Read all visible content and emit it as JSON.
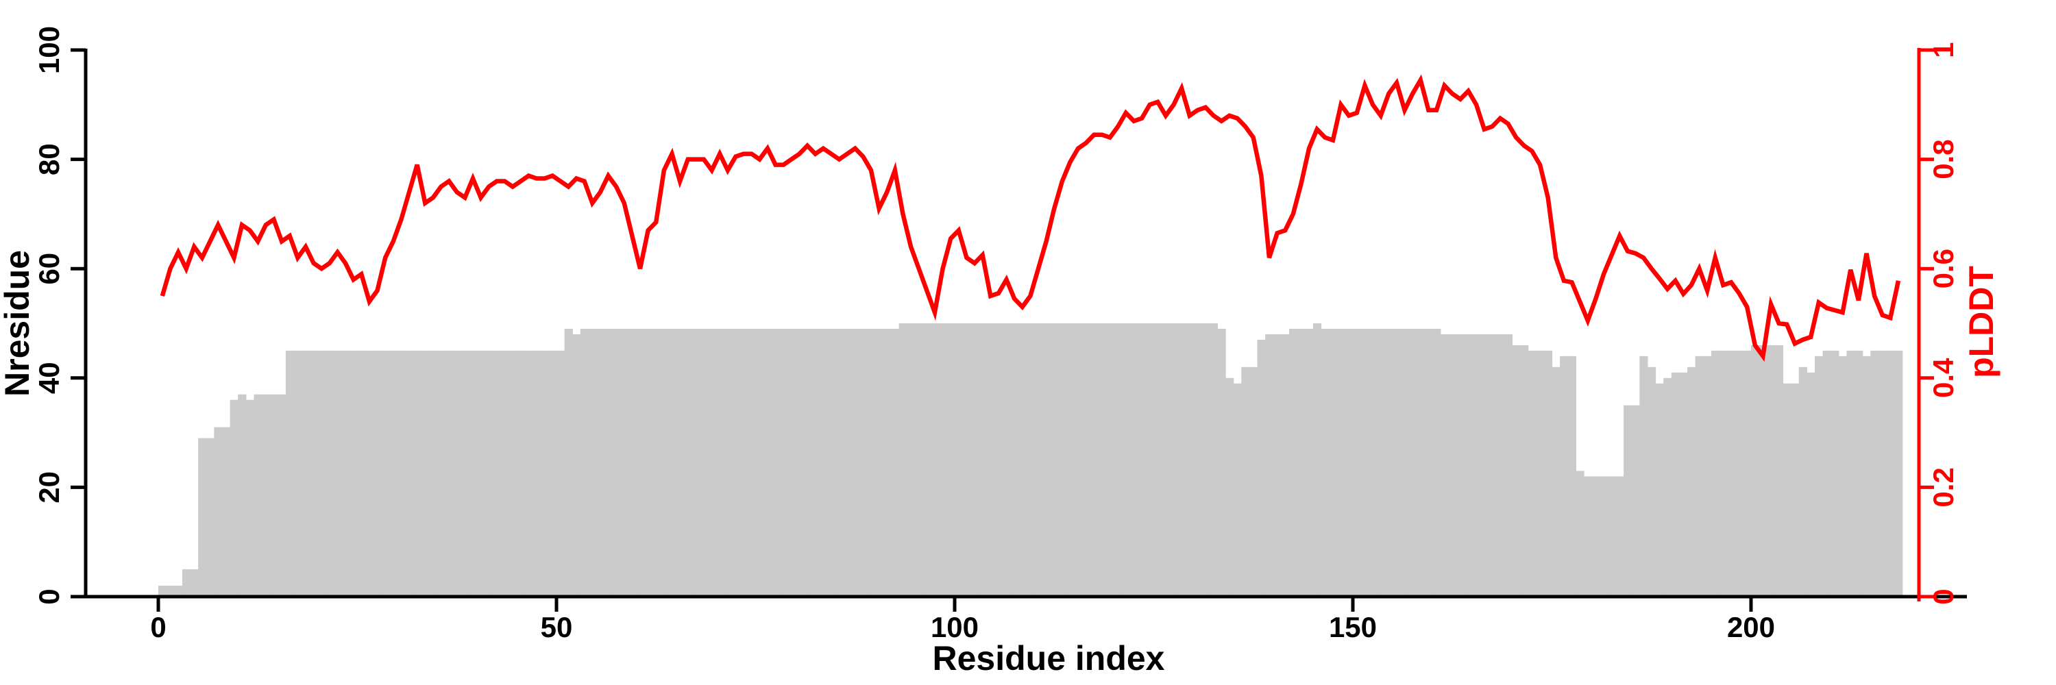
{
  "chart_data": {
    "type": "bar+line",
    "title": "",
    "xlabel": "Residue index",
    "ylabel_left": "Nresidue",
    "ylabel_right": "pLDDT",
    "xlim": [
      0,
      221
    ],
    "ylim_left": [
      0,
      100
    ],
    "ylim_right": [
      0,
      1
    ],
    "grid": false,
    "legend": "none",
    "x_ticks": [
      0,
      50,
      100,
      150,
      200
    ],
    "x_tick_labels": [
      "0",
      "50",
      "100",
      "150",
      "200"
    ],
    "y_ticks_left": [
      0,
      20,
      40,
      60,
      80,
      100
    ],
    "y_tick_labels_left": [
      "0",
      "20",
      "40",
      "60",
      "80",
      "100"
    ],
    "y_ticks_right": [
      0,
      0.2,
      0.4,
      0.6,
      0.8,
      1
    ],
    "y_tick_labels_right": [
      "0",
      "0.2",
      "0.4",
      "0.6",
      "0.8",
      "1"
    ],
    "bar_color": "#cbcbcb",
    "line_color": "#ff0000",
    "axis_color": "#000000",
    "x_start": 0,
    "series": [
      {
        "name": "Nresidue",
        "type": "bar",
        "axis": "left",
        "values": [
          2,
          2,
          2,
          5,
          5,
          29,
          29,
          31,
          31,
          36,
          37,
          36,
          37,
          37,
          37,
          37,
          45,
          45,
          45,
          45,
          45,
          45,
          45,
          45,
          45,
          45,
          45,
          45,
          45,
          45,
          45,
          45,
          45,
          45,
          45,
          45,
          45,
          45,
          45,
          45,
          45,
          45,
          45,
          45,
          45,
          45,
          45,
          45,
          45,
          45,
          45,
          49,
          48,
          49,
          49,
          49,
          49,
          49,
          49,
          49,
          49,
          49,
          49,
          49,
          49,
          49,
          49,
          49,
          49,
          49,
          49,
          49,
          49,
          49,
          49,
          49,
          49,
          49,
          49,
          49,
          49,
          49,
          49,
          49,
          49,
          49,
          49,
          49,
          49,
          49,
          49,
          49,
          49,
          50,
          50,
          50,
          50,
          50,
          50,
          50,
          50,
          50,
          50,
          50,
          50,
          50,
          50,
          50,
          50,
          50,
          50,
          50,
          50,
          50,
          50,
          50,
          50,
          50,
          50,
          50,
          50,
          50,
          50,
          50,
          50,
          50,
          50,
          50,
          50,
          50,
          50,
          50,
          50,
          49,
          40,
          39,
          42,
          42,
          47,
          48,
          48,
          48,
          49,
          49,
          49,
          50,
          49,
          49,
          49,
          49,
          49,
          49,
          49,
          49,
          49,
          49,
          49,
          49,
          49,
          49,
          49,
          48,
          48,
          48,
          48,
          48,
          48,
          48,
          48,
          48,
          46,
          46,
          45,
          45,
          45,
          42,
          44,
          44,
          23,
          22,
          22,
          22,
          22,
          22,
          35,
          35,
          44,
          42,
          39,
          40,
          41,
          41,
          42,
          44,
          44,
          45,
          45,
          45,
          45,
          45,
          46,
          46,
          46,
          46,
          39,
          39,
          42,
          41,
          44,
          45,
          45,
          44,
          45,
          45,
          44,
          45,
          45,
          45,
          45
        ]
      },
      {
        "name": "pLDDT",
        "type": "line",
        "axis": "right",
        "values": [
          0.55,
          0.6,
          0.63,
          0.6,
          0.64,
          0.62,
          0.65,
          0.68,
          0.65,
          0.62,
          0.68,
          0.67,
          0.65,
          0.68,
          0.69,
          0.65,
          0.66,
          0.62,
          0.64,
          0.61,
          0.6,
          0.61,
          0.63,
          0.61,
          0.58,
          0.59,
          0.54,
          0.56,
          0.62,
          0.65,
          0.69,
          0.74,
          0.79,
          0.72,
          0.73,
          0.75,
          0.76,
          0.74,
          0.73,
          0.765,
          0.73,
          0.75,
          0.76,
          0.76,
          0.75,
          0.76,
          0.77,
          0.765,
          0.765,
          0.77,
          0.76,
          0.75,
          0.765,
          0.76,
          0.72,
          0.74,
          0.77,
          0.75,
          0.72,
          0.66,
          0.6,
          0.67,
          0.685,
          0.78,
          0.81,
          0.76,
          0.8,
          0.8,
          0.8,
          0.78,
          0.81,
          0.78,
          0.805,
          0.81,
          0.81,
          0.8,
          0.82,
          0.79,
          0.79,
          0.8,
          0.81,
          0.825,
          0.81,
          0.82,
          0.81,
          0.8,
          0.81,
          0.82,
          0.805,
          0.78,
          0.71,
          0.74,
          0.78,
          0.7,
          0.64,
          0.6,
          0.56,
          0.52,
          0.6,
          0.655,
          0.67,
          0.62,
          0.61,
          0.625,
          0.55,
          0.555,
          0.58,
          0.545,
          0.53,
          0.55,
          0.6,
          0.65,
          0.71,
          0.76,
          0.795,
          0.82,
          0.83,
          0.845,
          0.845,
          0.84,
          0.86,
          0.885,
          0.87,
          0.875,
          0.9,
          0.905,
          0.88,
          0.9,
          0.93,
          0.88,
          0.89,
          0.895,
          0.88,
          0.87,
          0.88,
          0.875,
          0.86,
          0.84,
          0.77,
          0.62,
          0.665,
          0.67,
          0.7,
          0.755,
          0.82,
          0.855,
          0.84,
          0.835,
          0.9,
          0.88,
          0.885,
          0.935,
          0.9,
          0.88,
          0.92,
          0.94,
          0.89,
          0.92,
          0.945,
          0.89,
          0.89,
          0.935,
          0.92,
          0.91,
          0.925,
          0.9,
          0.855,
          0.86,
          0.875,
          0.865,
          0.84,
          0.825,
          0.815,
          0.79,
          0.73,
          0.62,
          0.578,
          0.575,
          0.54,
          0.505,
          0.545,
          0.59,
          0.625,
          0.66,
          0.632,
          0.628,
          0.62,
          0.6,
          0.582,
          0.563,
          0.578,
          0.554,
          0.57,
          0.6,
          0.56,
          0.62,
          0.57,
          0.575,
          0.555,
          0.53,
          0.46,
          0.44,
          0.535,
          0.5,
          0.498,
          0.463,
          0.47,
          0.475,
          0.538,
          0.528,
          0.524,
          0.52,
          0.598,
          0.542,
          0.628,
          0.55,
          0.515,
          0.51,
          0.578
        ]
      }
    ]
  }
}
